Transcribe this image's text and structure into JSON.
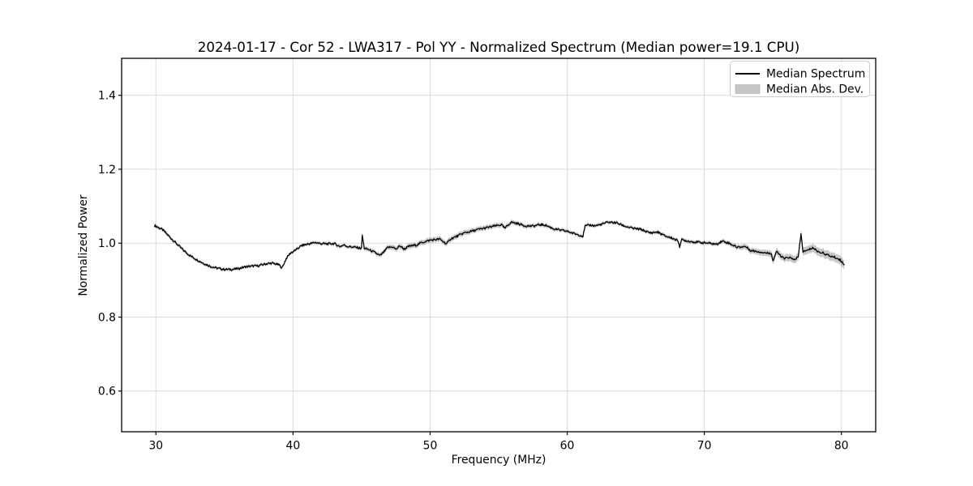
{
  "figure": {
    "title": "2024-01-17 - Cor 52 - LWA317 - Pol YY - Normalized Spectrum (Median power=19.1 CPU)",
    "xlabel": "Frequency (MHz)",
    "ylabel": "Normalized Power"
  },
  "legend": {
    "items": [
      {
        "label": "Median Spectrum",
        "type": "line",
        "color": "#000000"
      },
      {
        "label": "Median Abs. Dev.",
        "type": "patch",
        "color": "#c6c6c6"
      }
    ],
    "position": "upper right"
  },
  "chart_data": {
    "type": "line",
    "title": "2024-01-17 - Cor 52 - LWA317 - Pol YY - Normalized Spectrum (Median power=19.1 CPU)",
    "xlabel": "Frequency (MHz)",
    "ylabel": "Normalized Power",
    "xlim": [
      27.5,
      82.5
    ],
    "ylim": [
      0.49,
      1.5
    ],
    "xticks": [
      30,
      40,
      50,
      60,
      70,
      80
    ],
    "yticks": [
      0.6,
      0.8,
      1.0,
      1.2,
      1.4
    ],
    "xtick_labels": [
      "30",
      "40",
      "50",
      "60",
      "70",
      "80"
    ],
    "ytick_labels": [
      "0.6",
      "0.8",
      "1.0",
      "1.2",
      "1.4"
    ],
    "grid": true,
    "grid_color": "#dcdcdc",
    "line_color": "#000000",
    "band_color": "#909090",
    "band_opacity": 0.5,
    "freq_range": [
      29.9,
      80.2
    ],
    "noise": {
      "amplitude": 0.003,
      "step_mhz": 0.05
    },
    "series": [
      {
        "name": "Median Spectrum",
        "points": [
          [
            29.9,
            1.048
          ],
          [
            30.0,
            1.046
          ],
          [
            30.5,
            1.036
          ],
          [
            31.0,
            1.017
          ],
          [
            31.5,
            0.999
          ],
          [
            32.0,
            0.981
          ],
          [
            32.5,
            0.966
          ],
          [
            33.0,
            0.955
          ],
          [
            33.5,
            0.945
          ],
          [
            34.0,
            0.937
          ],
          [
            34.5,
            0.932
          ],
          [
            35.0,
            0.929
          ],
          [
            35.5,
            0.929
          ],
          [
            36.0,
            0.931
          ],
          [
            36.5,
            0.936
          ],
          [
            37.0,
            0.938
          ],
          [
            37.5,
            0.939
          ],
          [
            38.0,
            0.944
          ],
          [
            38.5,
            0.946
          ],
          [
            39.0,
            0.941
          ],
          [
            39.2,
            0.933
          ],
          [
            39.5,
            0.958
          ],
          [
            39.8,
            0.973
          ],
          [
            40.0,
            0.977
          ],
          [
            40.3,
            0.984
          ],
          [
            40.6,
            0.993
          ],
          [
            41.0,
            0.997
          ],
          [
            41.3,
            0.999
          ],
          [
            41.6,
            1.002
          ],
          [
            42.0,
            0.999
          ],
          [
            42.5,
            0.998
          ],
          [
            43.0,
            0.999
          ],
          [
            43.4,
            0.991
          ],
          [
            43.7,
            0.995
          ],
          [
            44.0,
            0.991
          ],
          [
            44.5,
            0.989
          ],
          [
            45.0,
            0.986
          ],
          [
            45.05,
            1.022
          ],
          [
            45.2,
            0.986
          ],
          [
            45.5,
            0.983
          ],
          [
            46.0,
            0.974
          ],
          [
            46.35,
            0.966
          ],
          [
            46.6,
            0.975
          ],
          [
            46.9,
            0.988
          ],
          [
            47.3,
            0.99
          ],
          [
            47.5,
            0.983
          ],
          [
            47.8,
            0.993
          ],
          [
            48.1,
            0.984
          ],
          [
            48.5,
            0.992
          ],
          [
            49.0,
            0.995
          ],
          [
            49.4,
            1.002
          ],
          [
            50.0,
            1.008
          ],
          [
            50.7,
            1.011
          ],
          [
            51.2,
            0.998
          ],
          [
            51.5,
            1.012
          ],
          [
            51.8,
            1.016
          ],
          [
            52.5,
            1.028
          ],
          [
            53.0,
            1.032
          ],
          [
            53.5,
            1.037
          ],
          [
            54.4,
            1.044
          ],
          [
            55.2,
            1.05
          ],
          [
            55.45,
            1.04
          ],
          [
            55.9,
            1.057
          ],
          [
            56.5,
            1.052
          ],
          [
            56.9,
            1.047
          ],
          [
            57.5,
            1.046
          ],
          [
            58.0,
            1.05
          ],
          [
            58.4,
            1.049
          ],
          [
            59.0,
            1.039
          ],
          [
            59.5,
            1.035
          ],
          [
            60.0,
            1.032
          ],
          [
            60.5,
            1.026
          ],
          [
            61.0,
            1.021
          ],
          [
            61.15,
            1.019
          ],
          [
            61.3,
            1.046
          ],
          [
            61.7,
            1.049
          ],
          [
            62.0,
            1.047
          ],
          [
            62.4,
            1.05
          ],
          [
            63.0,
            1.057
          ],
          [
            63.6,
            1.055
          ],
          [
            64.2,
            1.046
          ],
          [
            64.8,
            1.04
          ],
          [
            65.4,
            1.037
          ],
          [
            66.0,
            1.028
          ],
          [
            66.6,
            1.03
          ],
          [
            67.1,
            1.02
          ],
          [
            67.7,
            1.013
          ],
          [
            68.1,
            1.006
          ],
          [
            68.2,
            0.991
          ],
          [
            68.35,
            1.009
          ],
          [
            69.1,
            1.004
          ],
          [
            69.7,
            1.002
          ],
          [
            70.3,
            1.0
          ],
          [
            70.9,
            0.997
          ],
          [
            71.3,
            1.006
          ],
          [
            71.8,
            1.0
          ],
          [
            72.4,
            0.989
          ],
          [
            73.0,
            0.991
          ],
          [
            73.4,
            0.98
          ],
          [
            74.0,
            0.977
          ],
          [
            74.6,
            0.973
          ],
          [
            74.9,
            0.973
          ],
          [
            75.0,
            0.951
          ],
          [
            75.25,
            0.977
          ],
          [
            75.8,
            0.958
          ],
          [
            76.2,
            0.962
          ],
          [
            76.5,
            0.955
          ],
          [
            76.85,
            0.962
          ],
          [
            77.05,
            1.025
          ],
          [
            77.2,
            0.977
          ],
          [
            77.5,
            0.98
          ],
          [
            77.9,
            0.988
          ],
          [
            78.3,
            0.977
          ],
          [
            78.7,
            0.973
          ],
          [
            79.1,
            0.966
          ],
          [
            79.5,
            0.962
          ],
          [
            79.9,
            0.955
          ],
          [
            80.2,
            0.943
          ]
        ]
      },
      {
        "name": "Median Abs. Dev.",
        "band_halfwidth_points": [
          [
            29.9,
            0.005
          ],
          [
            34.0,
            0.004
          ],
          [
            39.0,
            0.004
          ],
          [
            44.0,
            0.005
          ],
          [
            46.5,
            0.006
          ],
          [
            48.0,
            0.007
          ],
          [
            52.0,
            0.007
          ],
          [
            56.0,
            0.006
          ],
          [
            60.0,
            0.005
          ],
          [
            64.0,
            0.0045
          ],
          [
            68.0,
            0.005
          ],
          [
            71.0,
            0.005
          ],
          [
            73.0,
            0.007
          ],
          [
            75.0,
            0.009
          ],
          [
            76.5,
            0.01
          ],
          [
            78.0,
            0.011
          ],
          [
            80.2,
            0.012
          ]
        ]
      }
    ]
  }
}
